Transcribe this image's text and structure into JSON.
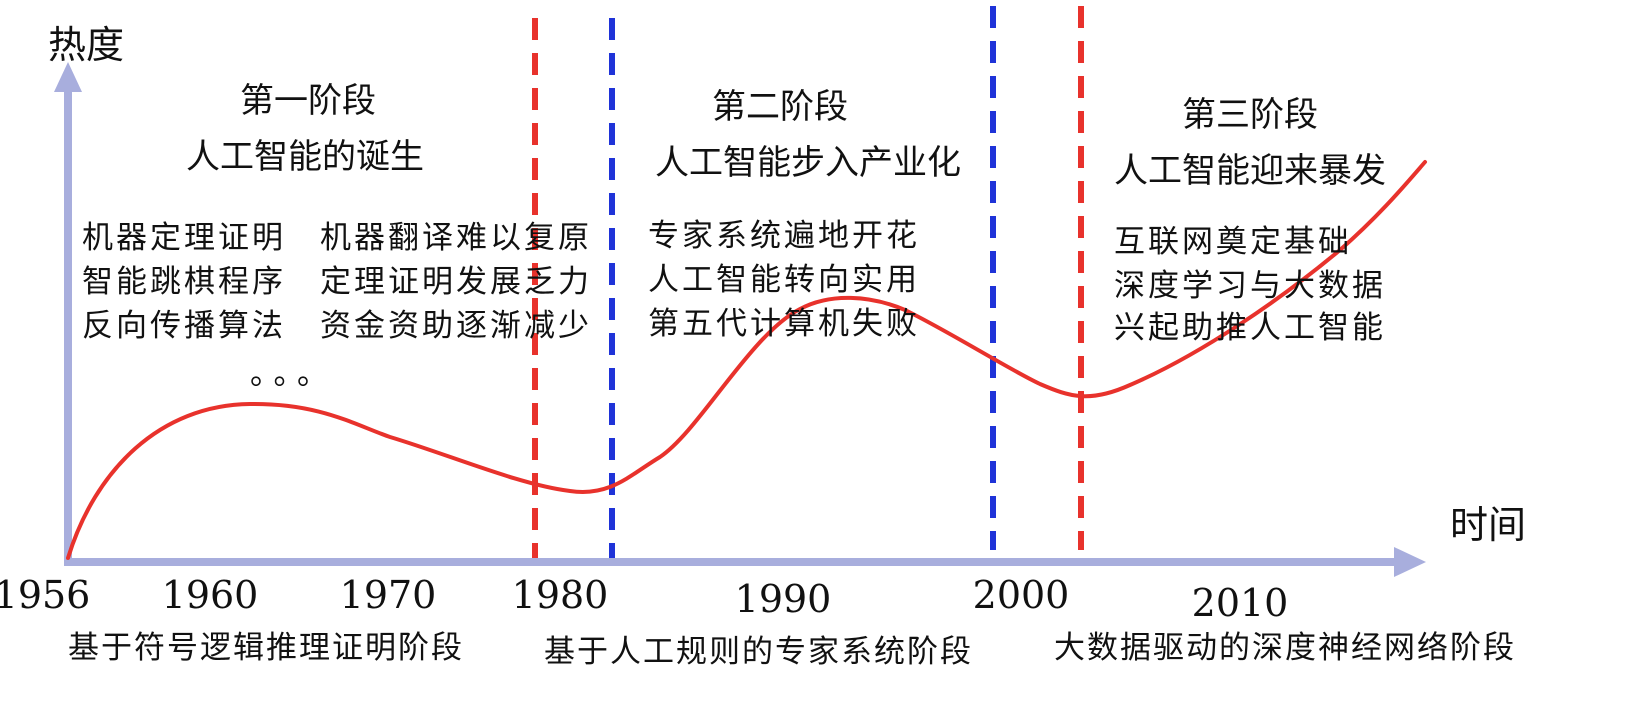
{
  "axis": {
    "y_label": "热度",
    "x_label": "时间",
    "years": [
      {
        "label": "1956",
        "value": 1956
      },
      {
        "label": "1960",
        "value": 1960
      },
      {
        "label": "1970",
        "value": 1970
      },
      {
        "label": "1980",
        "value": 1980
      },
      {
        "label": "1990",
        "value": 1990
      },
      {
        "label": "2000",
        "value": 2000
      },
      {
        "label": "2010",
        "value": 2010
      }
    ]
  },
  "stages": [
    {
      "title": "第一阶段",
      "subtitle": "人工智能的诞生",
      "items_left": [
        "机器定理证明",
        "智能跳棋程序",
        "反向传播算法"
      ],
      "items_right": [
        "机器翻译难以复原",
        "定理证明发展乏力",
        "资金资助逐渐减少"
      ],
      "ellipsis": "。。。"
    },
    {
      "title": "第二阶段",
      "subtitle": "人工智能步入产业化",
      "items": [
        "专家系统遍地开花",
        "人工智能转向实用",
        "第五代计算机失败"
      ]
    },
    {
      "title": "第三阶段",
      "subtitle": "人工智能迎来暴发",
      "items": [
        "互联网奠定基础",
        "深度学习与大数据",
        "兴起助推人工智能"
      ]
    }
  ],
  "phases": [
    "基于符号逻辑推理证明阶段",
    "基于人工规则的专家系统阶段",
    "大数据驱动的深度神经网络阶段"
  ],
  "colors": {
    "axis": "#a8aedd",
    "curve": "#e8322c",
    "dashed_red": "#e8322c",
    "dashed_blue": "#1f33d8",
    "text": "#111111"
  },
  "dividers": [
    {
      "color": "red"
    },
    {
      "color": "blue"
    },
    {
      "color": "blue"
    },
    {
      "color": "red"
    }
  ]
}
